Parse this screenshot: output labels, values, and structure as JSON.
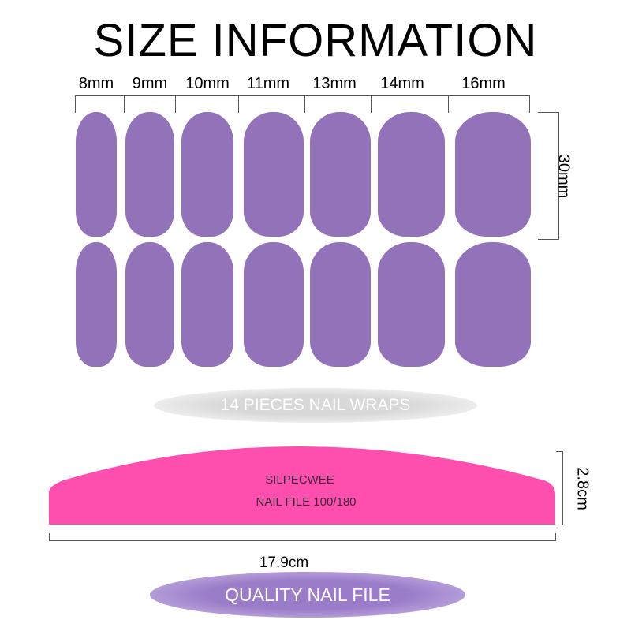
{
  "title": "SIZE INFORMATION",
  "nail_widths": [
    "8mm",
    "9mm",
    "10mm",
    "11mm",
    "13mm",
    "14mm",
    "16mm"
  ],
  "nail_length": "30mm",
  "nail_color": "#9272b8",
  "wraps_label": "14 PIECES NAIL WRAPS",
  "nail_file": {
    "brand": "SILPECWEE",
    "model": "NAIL FILE 100/180",
    "color": "#ff4fae",
    "width_label": "17.9cm",
    "height_label": "2.8cm"
  },
  "file_label": "QUALITY NAIL FILE"
}
